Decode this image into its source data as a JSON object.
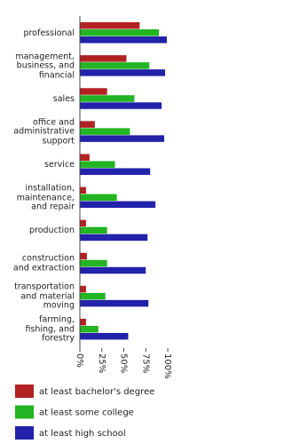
{
  "chart_data": {
    "type": "hbar",
    "categories": [
      "professional",
      "management,\nbusiness, and\nfinancial",
      "sales",
      "office and\nadministrative\nsupport",
      "service",
      "installation,\nmaintenance,\nand repair",
      "production",
      "construction\nand extraction",
      "transportation\nand material\nmoving",
      "farming,\nfishing, and\nforestry"
    ],
    "series": [
      {
        "name": "at least bachelor's degree",
        "color": "#b22222",
        "values": [
          68,
          53,
          31,
          17,
          11,
          7,
          7,
          8,
          7,
          7
        ]
      },
      {
        "name": "at least some college",
        "color": "#22b422",
        "values": [
          90,
          79,
          62,
          57,
          40,
          42,
          31,
          31,
          29,
          21
        ]
      },
      {
        "name": "at least high school",
        "color": "#2222aa",
        "values": [
          99,
          97,
          93,
          96,
          80,
          86,
          77,
          75,
          78,
          55
        ]
      }
    ],
    "xlim": [
      0,
      100
    ],
    "xticks": [
      {
        "value": 0,
        "label": "0%"
      },
      {
        "value": 25,
        "label": "25%"
      },
      {
        "value": 50,
        "label": "50%"
      },
      {
        "value": 75,
        "label": "75%"
      },
      {
        "value": 100,
        "label": "100%"
      }
    ]
  }
}
